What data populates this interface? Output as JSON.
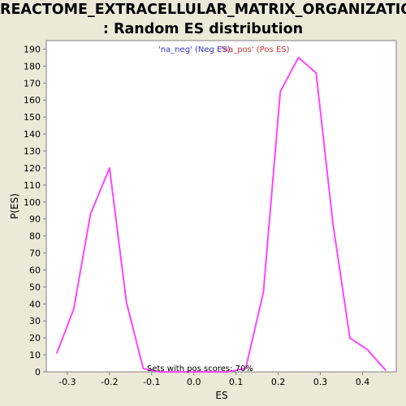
{
  "title": {
    "line1": "REACTOME_EXTRACELLULAR_MATRIX_ORGANIZATION",
    "line2": ": Random ES distribution"
  },
  "chart_data": {
    "type": "line",
    "xlabel": "ES",
    "ylabel": "P(ES)",
    "xlim": [
      -0.35,
      0.48
    ],
    "ylim": [
      0,
      195
    ],
    "x_ticks": [
      -0.3,
      -0.2,
      -0.1,
      0.0,
      0.1,
      0.2,
      0.3,
      0.4
    ],
    "x_tick_labels": [
      "-0.3",
      "-0.2",
      "-0.1",
      "0.0",
      "0.1",
      "0.2",
      "0.3",
      "0.4"
    ],
    "y_ticks": [
      0,
      10,
      20,
      30,
      40,
      50,
      60,
      70,
      80,
      90,
      100,
      110,
      120,
      130,
      140,
      150,
      160,
      170,
      180,
      190
    ],
    "grid": false,
    "legend": {
      "placement": "top-center",
      "entries": [
        {
          "label": "'na_neg' (Neg ES)",
          "color": "#3333cc"
        },
        {
          "label": "'na_pos' (Pos ES)",
          "color": "#cc3333"
        }
      ]
    },
    "annotation": "Sets with pos scores: 70%",
    "series": [
      {
        "color": "#ff44ff",
        "x": [
          -0.325,
          -0.285,
          -0.245,
          -0.2,
          -0.16,
          -0.12,
          -0.08,
          0.08,
          0.123,
          0.165,
          0.205,
          0.248,
          0.29,
          0.33,
          0.37,
          0.412,
          0.455
        ],
        "y": [
          11,
          37,
          93,
          120,
          41,
          2,
          0,
          0,
          2,
          47,
          165,
          185,
          176,
          87,
          20,
          13,
          1
        ]
      }
    ]
  },
  "colors": {
    "background": "#ece9d8",
    "plot_background": "#ffffff",
    "line": "#ff44ff"
  }
}
